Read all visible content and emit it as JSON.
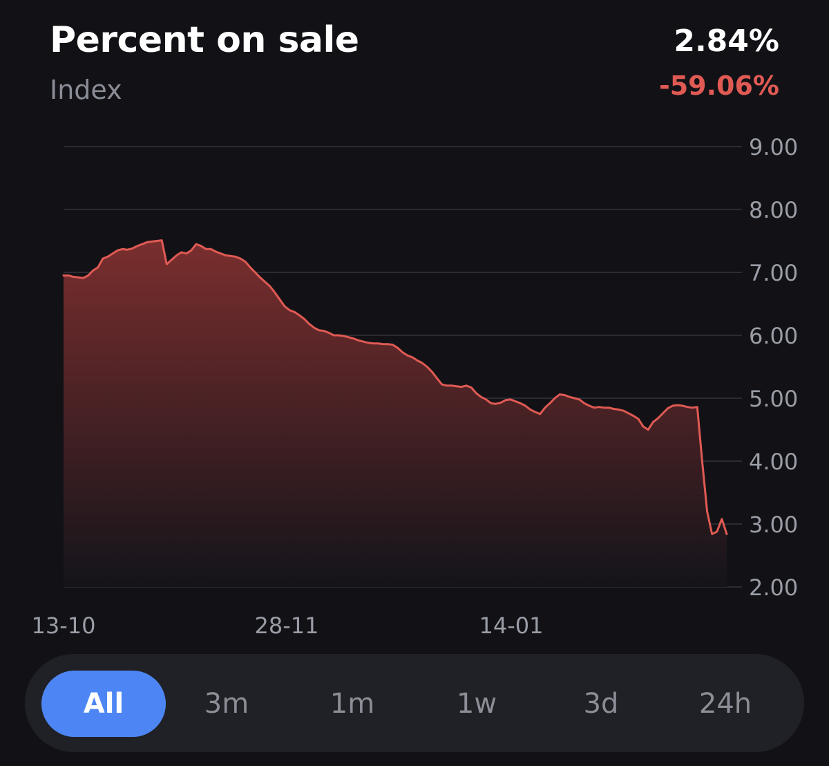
{
  "header": {
    "title": "Percent on sale",
    "subtitle": "Index",
    "value": "2.84%",
    "change": "-59.06%"
  },
  "colors": {
    "background": "#121216",
    "line": "#e05a54",
    "area_top": "#7a2e2e",
    "area_bottom": "#14141a",
    "grid": "#2a2c33",
    "tick_text": "#9a9da6",
    "change_negative": "#e05a54",
    "active_tab": "#4d86f4",
    "tab_bar": "#202126"
  },
  "chart_data": {
    "type": "area",
    "x_tick_labels": [
      "13-10",
      "28-11",
      "14-01"
    ],
    "y_tick_labels": [
      "9.00",
      "8.00",
      "7.00",
      "6.00",
      "5.00",
      "4.00",
      "3.00",
      "2.00"
    ],
    "ylim": [
      2.0,
      9.0
    ],
    "grid": true,
    "y_axis_position": "right",
    "series": [
      {
        "values": [
          6.95,
          6.95,
          6.93,
          6.92,
          6.91,
          6.95,
          7.03,
          7.08,
          7.22,
          7.25,
          7.3,
          7.35,
          7.37,
          7.36,
          7.38,
          7.42,
          7.45,
          7.48,
          7.49,
          7.5,
          7.51,
          7.13,
          7.2,
          7.27,
          7.32,
          7.3,
          7.35,
          7.45,
          7.42,
          7.37,
          7.37,
          7.33,
          7.3,
          7.27,
          7.26,
          7.25,
          7.22,
          7.17,
          7.08,
          7.0,
          6.92,
          6.85,
          6.78,
          6.68,
          6.57,
          6.46,
          6.4,
          6.37,
          6.32,
          6.26,
          6.18,
          6.12,
          6.08,
          6.07,
          6.04,
          6.0,
          6.0,
          5.99,
          5.97,
          5.95,
          5.92,
          5.9,
          5.88,
          5.87,
          5.87,
          5.86,
          5.86,
          5.85,
          5.8,
          5.73,
          5.68,
          5.65,
          5.6,
          5.56,
          5.5,
          5.42,
          5.32,
          5.22,
          5.2,
          5.2,
          5.19,
          5.18,
          5.2,
          5.17,
          5.08,
          5.02,
          4.98,
          4.92,
          4.91,
          4.93,
          4.97,
          4.98,
          4.95,
          4.92,
          4.88,
          4.82,
          4.78,
          4.75,
          4.85,
          4.92,
          5.0,
          5.06,
          5.05,
          5.02,
          5.0,
          4.98,
          4.92,
          4.88,
          4.85,
          4.86,
          4.85,
          4.85,
          4.83,
          4.82,
          4.8,
          4.76,
          4.72,
          4.67,
          4.55,
          4.5,
          4.62,
          4.68,
          4.76,
          4.84,
          4.88,
          4.89,
          4.88,
          4.86,
          4.85,
          4.86,
          4.0,
          3.2,
          2.84,
          2.88,
          3.08,
          2.84
        ]
      }
    ]
  },
  "range_tabs": {
    "items": [
      {
        "label": "All",
        "active": true
      },
      {
        "label": "3m",
        "active": false
      },
      {
        "label": "1m",
        "active": false
      },
      {
        "label": "1w",
        "active": false
      },
      {
        "label": "3d",
        "active": false
      },
      {
        "label": "24h",
        "active": false
      }
    ]
  }
}
